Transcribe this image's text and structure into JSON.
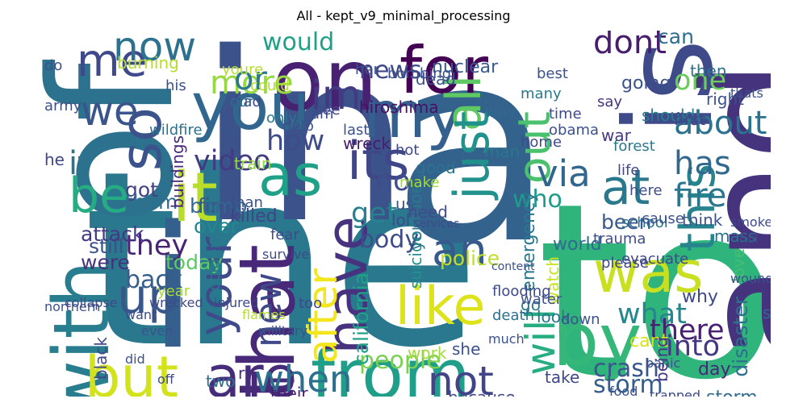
{
  "title": "All - kept_v9_minimal_processing",
  "words": [
    {
      "text": "the",
      "color": "#2a788e"
    },
    {
      "text": "a",
      "color": "#33638d"
    },
    {
      "text": "in",
      "color": "#3b528b"
    },
    {
      "text": "to",
      "color": "#2fb47c"
    },
    {
      "text": "of",
      "color": "#2c728e"
    },
    {
      "text": "and",
      "color": "#46337e"
    },
    {
      "text": "i",
      "color": "#355f8d"
    },
    {
      "text": "is",
      "color": "#3e4a89"
    },
    {
      "text": "on",
      "color": "#482173"
    },
    {
      "text": "for",
      "color": "#440154"
    },
    {
      "text": "you",
      "color": "#31678e"
    },
    {
      "text": "my",
      "color": "#355f8d"
    },
    {
      "text": "it",
      "color": "#b8de29"
    },
    {
      "text": "so",
      "color": "#3b528b"
    },
    {
      "text": "with",
      "color": "#287d8e"
    },
    {
      "text": "that",
      "color": "#482878"
    },
    {
      "text": "by",
      "color": "#35b779"
    },
    {
      "text": "from",
      "color": "#1f9e89"
    },
    {
      "text": "but",
      "color": "#d2e21b"
    },
    {
      "text": "are",
      "color": "#472c7a"
    },
    {
      "text": "was",
      "color": "#c8e020"
    },
    {
      "text": "your",
      "color": "#3e4a89"
    },
    {
      "text": "have",
      "color": "#46327e"
    },
    {
      "text": "like",
      "color": "#dde318"
    },
    {
      "text": "this",
      "color": "#25848e"
    },
    {
      "text": "at",
      "color": "#2a788e"
    },
    {
      "text": "all",
      "color": "#5ec962"
    },
    {
      "text": "its",
      "color": "#3f4788"
    },
    {
      "text": "me",
      "color": "#3e4989"
    },
    {
      "text": "now",
      "color": "#2c728e"
    },
    {
      "text": "as",
      "color": "#1fa187"
    },
    {
      "text": "be",
      "color": "#25ac82"
    },
    {
      "text": "up",
      "color": "#38588c"
    },
    {
      "text": "an",
      "color": "#375a8c"
    },
    {
      "text": "not",
      "color": "#414487"
    },
    {
      "text": "will",
      "color": "#27ad81"
    },
    {
      "text": "just",
      "color": "#21918c"
    },
    {
      "text": "out",
      "color": "#4ac16d"
    },
    {
      "text": "im",
      "color": "#443a83"
    },
    {
      "text": "we",
      "color": "#3a548c"
    },
    {
      "text": "if",
      "color": "#2c728e"
    },
    {
      "text": "after",
      "color": "#f3e51e"
    },
    {
      "text": "new",
      "color": "#3e4989"
    },
    {
      "text": "when",
      "color": "#2d708e"
    },
    {
      "text": "via",
      "color": "#31678e"
    },
    {
      "text": "fire",
      "color": "#2a768e"
    },
    {
      "text": "has",
      "color": "#31688e"
    },
    {
      "text": "more",
      "color": "#95d840"
    },
    {
      "text": "or",
      "color": "#2a788e"
    },
    {
      "text": "about",
      "color": "#2c728e"
    },
    {
      "text": "how",
      "color": "#3e4c8a"
    },
    {
      "text": "dont",
      "color": "#481d6f"
    },
    {
      "text": "one",
      "color": "#6ccd5a"
    },
    {
      "text": "what",
      "color": "#24868e"
    },
    {
      "text": "there",
      "color": "#482071"
    },
    {
      "text": "get",
      "color": "#26828e"
    },
    {
      "text": "video",
      "color": "#443983"
    },
    {
      "text": "no",
      "color": "#3d4e8a"
    },
    {
      "text": "they",
      "color": "#482475"
    },
    {
      "text": "people",
      "color": "#7ad151"
    },
    {
      "text": "been",
      "color": "#38598c"
    },
    {
      "text": "into",
      "color": "#453781"
    },
    {
      "text": "who",
      "color": "#1e9b8a"
    },
    {
      "text": "would",
      "color": "#1fa187"
    },
    {
      "text": "can",
      "color": "#2f6c8e"
    },
    {
      "text": "news",
      "color": "#3f4889"
    },
    {
      "text": "emergency",
      "color": "#2a788e"
    },
    {
      "text": "disaster",
      "color": "#2d708e"
    },
    {
      "text": "california",
      "color": "#20a386"
    },
    {
      "text": "police",
      "color": "#bddf26"
    },
    {
      "text": "crash",
      "color": "#3a548c"
    },
    {
      "text": "storm",
      "color": "#355e8d"
    },
    {
      "text": "suicide",
      "color": "#20928c"
    },
    {
      "text": "body",
      "color": "#3e4c8a"
    },
    {
      "text": "still",
      "color": "#3b518b"
    },
    {
      "text": "attack",
      "color": "#443983"
    },
    {
      "text": "were",
      "color": "#46317e"
    },
    {
      "text": "back",
      "color": "#355e8d"
    },
    {
      "text": "today",
      "color": "#5cc863"
    },
    {
      "text": "over",
      "color": "#23888e"
    },
    {
      "text": "fires",
      "color": "#3b528b"
    },
    {
      "text": "bomb",
      "color": "#31688e"
    },
    {
      "text": "got",
      "color": "#424186"
    },
    {
      "text": "them",
      "color": "#2e6f8e"
    },
    {
      "text": "buildings",
      "color": "#482878"
    },
    {
      "text": "accident",
      "color": "#29798e"
    },
    {
      "text": "families",
      "color": "#fde725"
    },
    {
      "text": "burning",
      "color": "#b5de2b"
    },
    {
      "text": "nuclear",
      "color": "#38598c"
    },
    {
      "text": "hiroshima",
      "color": "#471164"
    },
    {
      "text": "storm",
      "color": "#2f6b8e"
    },
    {
      "text": "day",
      "color": "#482878"
    },
    {
      "text": "why",
      "color": "#3e4989"
    },
    {
      "text": "some",
      "color": "#31688e"
    },
    {
      "text": "cant",
      "color": "#d8e219"
    },
    {
      "text": "being",
      "color": "#453882"
    },
    {
      "text": "watch",
      "color": "#cae11f"
    },
    {
      "text": "world",
      "color": "#2f6b8e"
    },
    {
      "text": "love",
      "color": "#44bf70"
    },
    {
      "text": "wreck",
      "color": "#481b6d"
    },
    {
      "text": "train",
      "color": "#93d741"
    },
    {
      "text": "youtube",
      "color": "#2a778e"
    },
    {
      "text": "killed",
      "color": "#414487"
    },
    {
      "text": "car",
      "color": "#3e4a89"
    },
    {
      "text": "black",
      "color": "#3e4989"
    },
    {
      "text": "two",
      "color": "#2e6e8e"
    },
    {
      "text": "rt",
      "color": "#472d7b"
    },
    {
      "text": "their",
      "color": "#482071"
    },
    {
      "text": "because",
      "color": "#3f4788"
    },
    {
      "text": "years",
      "color": "#2c738e"
    },
    {
      "text": "war",
      "color": "#443983"
    },
    {
      "text": "man",
      "color": "#2a768e"
    },
    {
      "text": "dead",
      "color": "#3a538b"
    },
    {
      "text": "way",
      "color": "#31688e"
    },
    {
      "text": "say",
      "color": "#453581"
    },
    {
      "text": "going",
      "color": "#3b518b"
    },
    {
      "text": "should",
      "color": "#287d8e"
    },
    {
      "text": "first",
      "color": "#3f4788"
    },
    {
      "text": "then",
      "color": "#2d708e"
    },
    {
      "text": "right",
      "color": "#3b528b"
    },
    {
      "text": "think",
      "color": "#3b528b"
    },
    {
      "text": "mass",
      "color": "#2c728e"
    },
    {
      "text": "take",
      "color": "#3f4788"
    },
    {
      "text": "good",
      "color": "#2c728e"
    },
    {
      "text": "need",
      "color": "#3e4c8a"
    },
    {
      "text": "us",
      "color": "#3a548c"
    },
    {
      "text": "lol",
      "color": "#3e4a89"
    },
    {
      "text": "go",
      "color": "#2a788e"
    },
    {
      "text": "look",
      "color": "#2a768e"
    },
    {
      "text": "she",
      "color": "#3b518b"
    },
    {
      "text": "work",
      "color": "#a2da37"
    },
    {
      "text": "fear",
      "color": "#3e4a89"
    },
    {
      "text": "too",
      "color": "#3e4989"
    },
    {
      "text": "only",
      "color": "#2a788e"
    },
    {
      "text": "had",
      "color": "#3f4788"
    },
    {
      "text": "help",
      "color": "#3b528b"
    },
    {
      "text": "than",
      "color": "#3b518b"
    },
    {
      "text": "those",
      "color": "#b2dd2d"
    },
    {
      "text": "he",
      "color": "#3f4788"
    },
    {
      "text": "his",
      "color": "#3b518b"
    },
    {
      "text": "year",
      "color": "#a8db34"
    },
    {
      "text": "see",
      "color": "#3f4788"
    },
    {
      "text": "her",
      "color": "#3b518b"
    },
    {
      "text": "our",
      "color": "#2e6e8e"
    },
    {
      "text": "youre",
      "color": "#b5de2b"
    },
    {
      "text": "could",
      "color": "#b5de2b"
    },
    {
      "text": "am",
      "color": "#3e4a89"
    },
    {
      "text": "do",
      "color": "#3b528b"
    },
    {
      "text": "wildfire",
      "color": "#2d708e"
    },
    {
      "text": "army",
      "color": "#3b518b"
    },
    {
      "text": "many",
      "color": "#2a788e"
    },
    {
      "text": "hot",
      "color": "#3e4989"
    },
    {
      "text": "time",
      "color": "#3e4989"
    },
    {
      "text": "last",
      "color": "#3b518b"
    },
    {
      "text": "make",
      "color": "#a2da37"
    },
    {
      "text": "best",
      "color": "#3b528b"
    },
    {
      "text": "home",
      "color": "#3e4a89"
    },
    {
      "text": "obama",
      "color": "#3b518b"
    },
    {
      "text": "forest",
      "color": "#2a788e"
    },
    {
      "text": "life",
      "color": "#3f4788"
    },
    {
      "text": "here",
      "color": "#3e4c8a"
    },
    {
      "text": "down",
      "color": "#3b518b"
    },
    {
      "text": "school",
      "color": "#2d708e"
    },
    {
      "text": "water",
      "color": "#3b518b"
    },
    {
      "text": "trauma",
      "color": "#3e4a89"
    },
    {
      "text": "please",
      "color": "#3f4788"
    },
    {
      "text": "evacuate",
      "color": "#3e4989"
    },
    {
      "text": "cause",
      "color": "#3b528b"
    },
    {
      "text": "bombing",
      "color": "#3b518b"
    },
    {
      "text": "flooding",
      "color": "#3e4a89"
    },
    {
      "text": "death",
      "color": "#2d708e"
    },
    {
      "text": "northern",
      "color": "#3b518b"
    },
    {
      "text": "collapse",
      "color": "#3e4a89"
    },
    {
      "text": "want",
      "color": "#3e4989"
    },
    {
      "text": "even",
      "color": "#3b528b"
    },
    {
      "text": "wrecked",
      "color": "#3e4a89"
    },
    {
      "text": "flames",
      "color": "#b5de2b"
    },
    {
      "text": "military",
      "color": "#3b518b"
    },
    {
      "text": "injured",
      "color": "#3e4989"
    },
    {
      "text": "fatalities",
      "color": "#3e4a89"
    },
    {
      "text": "did",
      "color": "#3b528b"
    },
    {
      "text": "off",
      "color": "#3e4a89"
    },
    {
      "text": "food",
      "color": "#3b518b"
    },
    {
      "text": "trapped",
      "color": "#3e4989"
    },
    {
      "text": "much",
      "color": "#3b528b"
    },
    {
      "text": "survive",
      "color": "#3e4989"
    },
    {
      "text": "thats",
      "color": "#3b518b"
    },
    {
      "text": "full",
      "color": "#3e4a89"
    },
    {
      "text": "wounded",
      "color": "#3b518b"
    },
    {
      "text": "smoke",
      "color": "#3e4989"
    },
    {
      "text": "panic",
      "color": "#3b528b"
    },
    {
      "text": "services",
      "color": "#3e4a89"
    },
    {
      "text": "content",
      "color": "#3b518b"
    }
  ]
}
